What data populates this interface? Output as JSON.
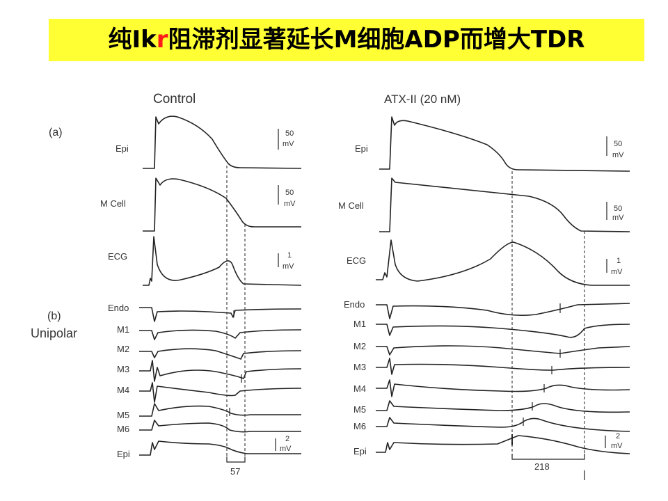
{
  "title": {
    "before": "纯Ik",
    "highlight": "r",
    "after": "阻滞剂显著延长M细胞ADP而增大TDR"
  },
  "panel_labels": {
    "a": "(a)",
    "b": "(b)",
    "unipolar": "Unipolar"
  },
  "control": {
    "heading": "Control",
    "traces": {
      "epi": "Epi",
      "mcell": "M Cell",
      "ecg": "ECG"
    },
    "scales": {
      "epi": {
        "value": "50",
        "unit": "mV"
      },
      "mcell": {
        "value": "50",
        "unit": "mV"
      },
      "ecg": {
        "value": "1",
        "unit": "mV"
      },
      "unipolar": {
        "value": "2",
        "unit": "mV"
      }
    },
    "leads": [
      "Endo",
      "M1",
      "M2",
      "M3",
      "M4",
      "M5",
      "M6",
      "Epi"
    ],
    "interval": "57"
  },
  "atx": {
    "heading": "ATX-II (20 nM)",
    "traces": {
      "epi": "Epi",
      "mcell": "M Cell",
      "ecg": "ECG"
    },
    "scales": {
      "epi": {
        "value": "50",
        "unit": "mV"
      },
      "mcell": {
        "value": "50",
        "unit": "mV"
      },
      "ecg": {
        "value": "1",
        "unit": "mV"
      },
      "unipolar": {
        "value": "2",
        "unit": "mV"
      }
    },
    "leads": [
      "Endo",
      "M1",
      "M2",
      "M3",
      "M4",
      "M5",
      "M6",
      "Epi"
    ],
    "interval": "218"
  }
}
